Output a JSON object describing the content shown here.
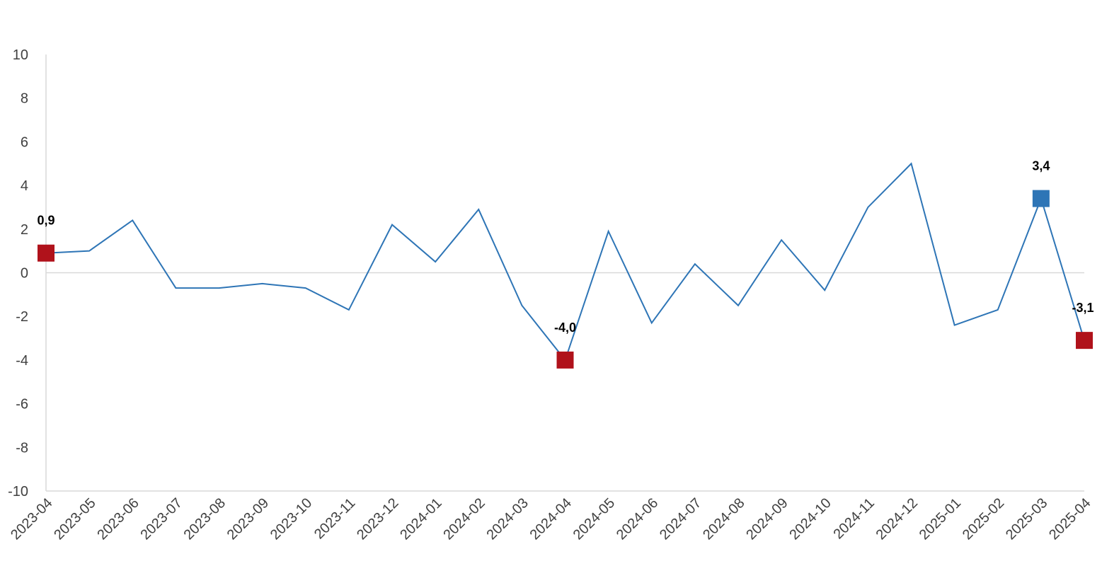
{
  "chart_data": {
    "type": "line",
    "x": [
      "2023-04",
      "2023-05",
      "2023-06",
      "2023-07",
      "2023-08",
      "2023-09",
      "2023-10",
      "2023-11",
      "2023-12",
      "2024-01",
      "2024-02",
      "2024-03",
      "2024-04",
      "2024-05",
      "2024-06",
      "2024-07",
      "2024-08",
      "2024-09",
      "2024-10",
      "2024-11",
      "2024-12",
      "2025-01",
      "2025-02",
      "2025-03",
      "2025-04"
    ],
    "series": [
      {
        "values": [
          0.9,
          1.0,
          2.4,
          -0.7,
          -0.7,
          -0.5,
          -0.7,
          -1.7,
          2.2,
          0.5,
          2.9,
          -1.5,
          -4.0,
          1.9,
          -2.3,
          0.4,
          -1.5,
          1.5,
          -0.8,
          3.0,
          5.0,
          -2.4,
          -1.7,
          3.4,
          -3.1
        ],
        "color": "#2E75B6"
      }
    ],
    "ylim": [
      -10,
      10
    ],
    "yticks": [
      "10",
      "8",
      "6",
      "4",
      "2",
      "0",
      "-2",
      "-4",
      "-6",
      "-8",
      "-10"
    ],
    "ytick_values": [
      10,
      8,
      6,
      4,
      2,
      0,
      -2,
      -4,
      -6,
      -8,
      -10
    ],
    "highlighted_points": [
      {
        "x": "2023-04",
        "label": "0,9",
        "color": "#B0121B",
        "value": 0.9
      },
      {
        "x": "2024-04",
        "label": "-4,0",
        "color": "#B0121B",
        "value": -4.0
      },
      {
        "x": "2025-03",
        "label": "3,4",
        "color": "#2E75B6",
        "value": 3.4
      },
      {
        "x": "2025-04",
        "label": "-3,1",
        "color": "#B0121B",
        "value": -3.1
      }
    ],
    "grid": false,
    "zero_line": true,
    "title": "",
    "xlabel": "",
    "ylabel": ""
  }
}
